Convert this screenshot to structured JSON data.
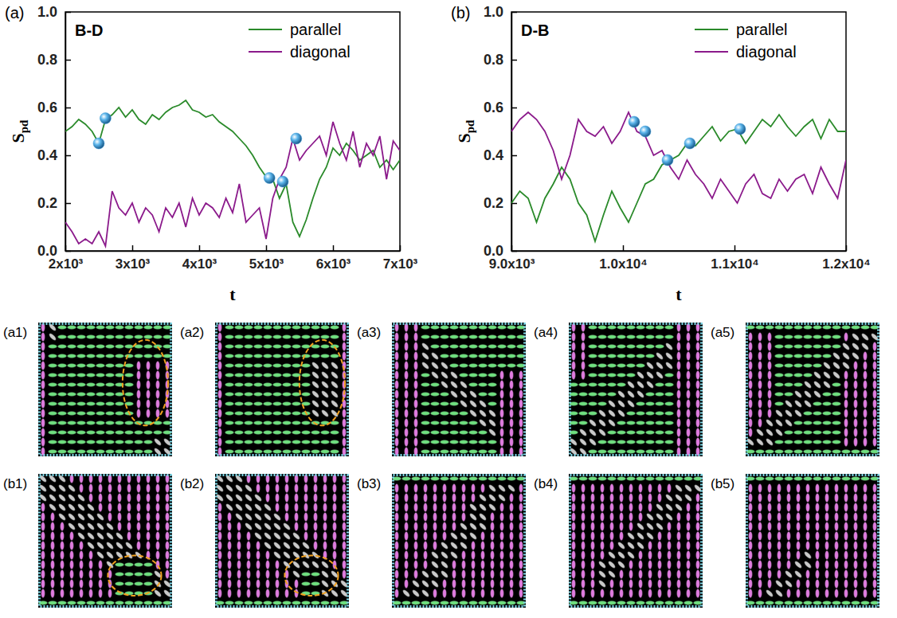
{
  "chart_data": [
    {
      "type": "line",
      "panel": "(a)",
      "annotation": "B-D",
      "xlabel": "t",
      "ylabel": "Spd",
      "xlim": [
        2000,
        7000
      ],
      "ylim": [
        0,
        1
      ],
      "xticks": [
        {
          "value": 2000,
          "label": "2x10³"
        },
        {
          "value": 3000,
          "label": "3x10³"
        },
        {
          "value": 4000,
          "label": "4x10³"
        },
        {
          "value": 5000,
          "label": "5x10³"
        },
        {
          "value": 6000,
          "label": "6x10³"
        },
        {
          "value": 7000,
          "label": "7x10³"
        }
      ],
      "yticks": [
        {
          "value": 0,
          "label": "0.0"
        },
        {
          "value": 0.2,
          "label": "0.2"
        },
        {
          "value": 0.4,
          "label": "0.4"
        },
        {
          "value": 0.6,
          "label": "0.6"
        },
        {
          "value": 0.8,
          "label": "0.8"
        },
        {
          "value": 1,
          "label": "1.0"
        }
      ],
      "legend": "upper right",
      "x": [
        2000,
        2100,
        2200,
        2300,
        2400,
        2500,
        2600,
        2700,
        2800,
        2900,
        3000,
        3100,
        3200,
        3300,
        3400,
        3500,
        3600,
        3700,
        3800,
        3900,
        4000,
        4100,
        4200,
        4300,
        4400,
        4500,
        4600,
        4700,
        4800,
        4900,
        5000,
        5100,
        5200,
        5300,
        5400,
        5500,
        5600,
        5700,
        5800,
        5900,
        6000,
        6100,
        6200,
        6300,
        6400,
        6500,
        6600,
        6700,
        6800,
        6900,
        7000
      ],
      "series": [
        {
          "name": "parallel",
          "color": "#2a8a2a",
          "values": [
            0.5,
            0.52,
            0.55,
            0.53,
            0.5,
            0.45,
            0.55,
            0.57,
            0.6,
            0.56,
            0.59,
            0.55,
            0.53,
            0.57,
            0.55,
            0.58,
            0.6,
            0.61,
            0.63,
            0.59,
            0.58,
            0.56,
            0.57,
            0.54,
            0.52,
            0.5,
            0.47,
            0.44,
            0.4,
            0.35,
            0.31,
            0.3,
            0.22,
            0.28,
            0.12,
            0.06,
            0.13,
            0.22,
            0.3,
            0.35,
            0.43,
            0.4,
            0.45,
            0.42,
            0.38,
            0.4,
            0.42,
            0.35,
            0.38,
            0.34,
            0.38
          ]
        },
        {
          "name": "diagonal",
          "color": "#8b1a8b",
          "values": [
            0.12,
            0.08,
            0.03,
            0.05,
            0.03,
            0.08,
            0.02,
            0.25,
            0.18,
            0.15,
            0.2,
            0.12,
            0.18,
            0.15,
            0.08,
            0.18,
            0.14,
            0.2,
            0.1,
            0.22,
            0.15,
            0.2,
            0.18,
            0.14,
            0.22,
            0.16,
            0.28,
            0.12,
            0.15,
            0.18,
            0.05,
            0.22,
            0.3,
            0.35,
            0.47,
            0.38,
            0.42,
            0.45,
            0.48,
            0.4,
            0.54,
            0.45,
            0.38,
            0.5,
            0.35,
            0.45,
            0.4,
            0.48,
            0.3,
            0.46,
            0.42
          ]
        }
      ],
      "markers": {
        "color": "#3a9ad9",
        "x": [
          2500,
          2600,
          5050,
          5250,
          5450
        ],
        "values": [
          0.45,
          0.555,
          0.305,
          0.29,
          0.47
        ]
      }
    },
    {
      "type": "line",
      "panel": "(b)",
      "annotation": "D-B",
      "xlabel": "t",
      "ylabel": "Spd",
      "xlim": [
        9000,
        12000
      ],
      "ylim": [
        0,
        1
      ],
      "xticks": [
        {
          "value": 9000,
          "label": "9.0x10³"
        },
        {
          "value": 10000,
          "label": "1.0x10⁴"
        },
        {
          "value": 11000,
          "label": "1.1x10⁴"
        },
        {
          "value": 12000,
          "label": "1.2x10⁴"
        }
      ],
      "yticks": [
        {
          "value": 0,
          "label": "0.0"
        },
        {
          "value": 0.2,
          "label": "0.2"
        },
        {
          "value": 0.4,
          "label": "0.4"
        },
        {
          "value": 0.6,
          "label": "0.6"
        },
        {
          "value": 0.8,
          "label": "0.8"
        },
        {
          "value": 1,
          "label": "1.0"
        }
      ],
      "legend": "upper right",
      "x": [
        9000,
        9075,
        9150,
        9225,
        9300,
        9375,
        9450,
        9525,
        9600,
        9675,
        9750,
        9825,
        9900,
        9975,
        10050,
        10125,
        10200,
        10275,
        10350,
        10425,
        10500,
        10575,
        10650,
        10725,
        10800,
        10875,
        10950,
        11025,
        11100,
        11175,
        11250,
        11325,
        11400,
        11475,
        11550,
        11625,
        11700,
        11775,
        11850,
        11925,
        12000
      ],
      "series": [
        {
          "name": "parallel",
          "color": "#2a8a2a",
          "values": [
            0.2,
            0.25,
            0.22,
            0.12,
            0.22,
            0.28,
            0.35,
            0.3,
            0.2,
            0.15,
            0.04,
            0.15,
            0.25,
            0.18,
            0.12,
            0.2,
            0.28,
            0.3,
            0.36,
            0.38,
            0.4,
            0.45,
            0.44,
            0.48,
            0.52,
            0.46,
            0.5,
            0.51,
            0.45,
            0.5,
            0.55,
            0.52,
            0.57,
            0.52,
            0.48,
            0.52,
            0.55,
            0.47,
            0.55,
            0.5,
            0.5
          ]
        },
        {
          "name": "diagonal",
          "color": "#8b1a8b",
          "values": [
            0.5,
            0.55,
            0.58,
            0.55,
            0.5,
            0.42,
            0.3,
            0.4,
            0.55,
            0.5,
            0.48,
            0.52,
            0.45,
            0.5,
            0.58,
            0.5,
            0.48,
            0.4,
            0.42,
            0.35,
            0.3,
            0.38,
            0.32,
            0.28,
            0.22,
            0.3,
            0.25,
            0.2,
            0.28,
            0.32,
            0.24,
            0.22,
            0.3,
            0.25,
            0.3,
            0.32,
            0.24,
            0.35,
            0.28,
            0.22,
            0.38
          ]
        }
      ],
      "markers": {
        "color": "#3a9ad9",
        "x": [
          10100,
          10200,
          10400,
          10600,
          11050
        ],
        "values": [
          0.54,
          0.5,
          0.38,
          0.45,
          0.51
        ]
      }
    }
  ],
  "snapshots": {
    "labels": [
      [
        "(a1)",
        "(a2)",
        "(a3)",
        "(a4)",
        "(a5)"
      ],
      [
        "(b1)",
        "(b2)",
        "(b3)",
        "(b4)",
        "(b5)"
      ]
    ]
  }
}
